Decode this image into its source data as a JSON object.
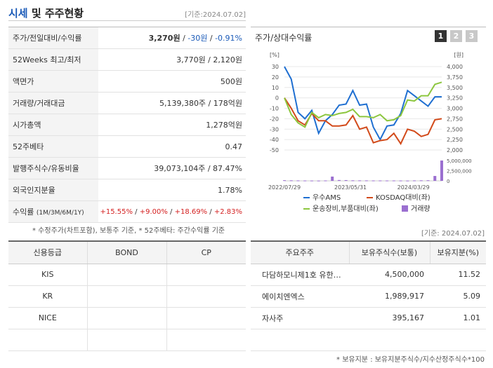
{
  "header": {
    "title_blue": "시세",
    "title_rest": " 및 주주현황",
    "date": "[기준:2024.07.02]"
  },
  "stats": {
    "rows": [
      {
        "label": "주가/전일대비/수익률",
        "price": "3,270원",
        "change": "-30원",
        "pct": "-0.91%"
      },
      {
        "label": "52Weeks 최고/최저",
        "value": "3,770원 / 2,120원"
      },
      {
        "label": "액면가",
        "value": "500원"
      },
      {
        "label": "거래량/거래대금",
        "value": "5,139,380주 / 178억원"
      },
      {
        "label": "시가총액",
        "value": "1,278억원"
      },
      {
        "label": "52주베타",
        "value": "0.47"
      },
      {
        "label": "발행주식수/유동비율",
        "value": "39,073,104주 / 87.47%"
      },
      {
        "label": "외국인지분율",
        "value": "1.78%"
      }
    ],
    "returns": {
      "label": "수익률",
      "label_sub": "(1M/3M/6M/1Y)",
      "r1": "+15.55%",
      "r2": "+9.00%",
      "r3": "+18.69%",
      "r4": "+2.83%"
    }
  },
  "note1": "* 수정주가(차트포함), 보통주 기준, * 52주베타: 주간수익률 기준",
  "date2": "[기준: 2024.07.02]",
  "chart_panel": {
    "title": "주가/상대수익률",
    "pages": [
      "1",
      "2",
      "3"
    ]
  },
  "chart_data": {
    "type": "line",
    "left_axis_unit": "[%]",
    "right_axis_unit": "[원]",
    "left_ticks": [
      "30",
      "20",
      "10",
      "0",
      "-10",
      "-20",
      "-30",
      "-40",
      "-50"
    ],
    "right_ticks": [
      "4,000",
      "3,750",
      "3,500",
      "3,250",
      "3,000",
      "2,750",
      "2,500",
      "2,250",
      "2,000"
    ],
    "volume_ticks": [
      "5,000,000",
      "2,500,000",
      "0"
    ],
    "x_labels": [
      "2022/07/29",
      "2023/05/31",
      "2024/03/29"
    ],
    "ylim": [
      -50,
      30
    ],
    "series": [
      {
        "name": "우수AMS",
        "color": "#1f6fd1",
        "values": [
          30,
          18,
          -14,
          -20,
          -12,
          -34,
          -22,
          -16,
          -7,
          -6,
          7,
          -7,
          -6,
          -28,
          -40,
          -27,
          -26,
          -15,
          7,
          2,
          -3,
          -8,
          1,
          1
        ]
      },
      {
        "name": "KOSDAQ대비(좌)",
        "color": "#d24a1a",
        "values": [
          0,
          -10,
          -22,
          -26,
          -15,
          -22,
          -22,
          -27,
          -27,
          -26,
          -17,
          -30,
          -28,
          -43,
          -41,
          -40,
          -34,
          -44,
          -30,
          -32,
          -37,
          -35,
          -21,
          -20
        ]
      },
      {
        "name": "운송장비,부품대비(좌)",
        "color": "#8cc63e",
        "values": [
          0,
          -16,
          -24,
          -28,
          -14,
          -19,
          -16,
          -17,
          -15,
          -14,
          -11,
          -18,
          -18,
          -19,
          -16,
          -22,
          -21,
          -17,
          -2,
          -3,
          2,
          2,
          13,
          15
        ]
      },
      {
        "name": "거래량",
        "color": "#9b6fd0",
        "values": [
          150000,
          120000,
          100000,
          80000,
          70000,
          60000,
          90000,
          1050000,
          200000,
          180000,
          120000,
          110000,
          100000,
          90000,
          90000,
          80000,
          90000,
          80000,
          60000,
          100000,
          120000,
          140000,
          1200000,
          5000000
        ]
      }
    ]
  },
  "credit": {
    "headers": [
      "신용등급",
      "BOND",
      "CP"
    ],
    "rows": [
      [
        "KIS",
        "",
        ""
      ],
      [
        "KR",
        "",
        ""
      ],
      [
        "NICE",
        "",
        ""
      ],
      [
        "",
        "",
        ""
      ]
    ]
  },
  "holders": {
    "headers": [
      "주요주주",
      "보유주식수(보통)",
      "보유지분(%)"
    ],
    "rows": [
      {
        "name": "다담하모니제1호 유한…",
        "shares": "4,500,000",
        "pct": "11.52"
      },
      {
        "name": "에이치엔엑스",
        "shares": "1,989,917",
        "pct": "5.09"
      },
      {
        "name": "자사주",
        "shares": "395,167",
        "pct": "1.01"
      }
    ]
  },
  "note2": "* 보유지분 : 보유지분주식수/지수산정주식수*100"
}
